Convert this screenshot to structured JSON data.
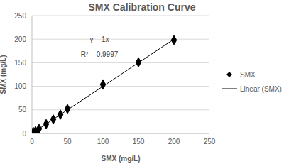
{
  "chart_data": {
    "type": "scatter",
    "title": "SMX Calibration Curve",
    "x_label": "SMX (mg/L)",
    "y_label": "SMX (mg/L)",
    "annotations": [
      "y = 1x",
      "R² = 0.9997"
    ],
    "xlim": [
      0,
      250
    ],
    "xticks": [
      0,
      50,
      100,
      150,
      200,
      250
    ],
    "ylim": [
      0,
      250
    ],
    "yticks": [
      0,
      50,
      100,
      150,
      200,
      250
    ],
    "grid": true,
    "legend": "right",
    "series": [
      {
        "name": "SMX",
        "type": "scatter",
        "marker": "diamond",
        "color": "#000000",
        "x": [
          0.5,
          1,
          2.5,
          5,
          10,
          20,
          30,
          40,
          50,
          100,
          150,
          200
        ],
        "values": [
          0.5,
          1,
          2.5,
          5,
          10,
          20,
          30,
          40,
          52,
          104,
          151,
          198
        ]
      },
      {
        "name": "Linear (SMX)",
        "type": "line",
        "line_style": "solid",
        "color": "#000000",
        "x": [
          0,
          200
        ],
        "values": [
          0,
          200
        ]
      }
    ]
  }
}
